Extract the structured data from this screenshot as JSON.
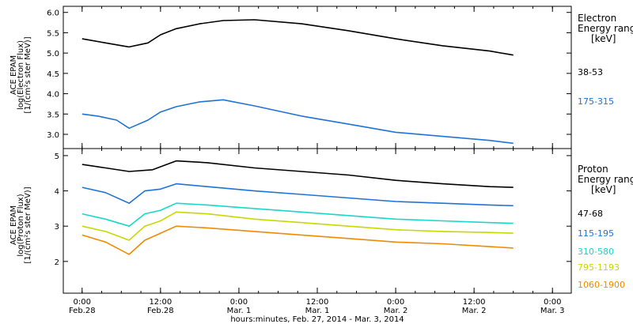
{
  "chart_data": [
    {
      "type": "line",
      "panel": "top",
      "ylabel_lines": [
        "ACE EPAM",
        "log(Electron Flux)",
        "[1/(cm²s ster MeV)]"
      ],
      "ylim": [
        2.65,
        6.15
      ],
      "yticks": [
        3.0,
        3.5,
        4.0,
        4.5,
        5.0,
        5.5,
        6.0
      ],
      "yticklabels": [
        "3.0",
        "3.5",
        "4.0",
        "4.5",
        "5.0",
        "5.5",
        "6.0"
      ],
      "legend_title": [
        "Electron",
        "Energy range",
        "[keV]"
      ],
      "series": [
        {
          "name": "38-53",
          "color": "#000000",
          "x": [
            0,
            0.15,
            0.3,
            0.42,
            0.5,
            0.6,
            0.75,
            0.9,
            1.1,
            1.4,
            1.7,
            2.0,
            2.3,
            2.6,
            2.75
          ],
          "y": [
            5.35,
            5.25,
            5.15,
            5.25,
            5.45,
            5.6,
            5.72,
            5.8,
            5.82,
            5.72,
            5.55,
            5.35,
            5.18,
            5.05,
            4.95
          ]
        },
        {
          "name": "175-315",
          "color": "#1f73d8",
          "x": [
            0,
            0.1,
            0.22,
            0.3,
            0.42,
            0.5,
            0.6,
            0.75,
            0.9,
            1.1,
            1.4,
            1.7,
            2.0,
            2.3,
            2.6,
            2.75
          ],
          "y": [
            3.5,
            3.45,
            3.35,
            3.15,
            3.35,
            3.55,
            3.68,
            3.8,
            3.85,
            3.7,
            3.45,
            3.25,
            3.05,
            2.95,
            2.85,
            2.78
          ]
        }
      ]
    },
    {
      "type": "line",
      "panel": "bottom",
      "ylabel_lines": [
        "ACE EPAM",
        "log(Proton Flux)",
        "[1/(cm²s ster MeV)]"
      ],
      "ylim": [
        1.1,
        5.2
      ],
      "yticks": [
        2,
        3,
        4,
        5
      ],
      "yticklabels": [
        "2",
        "3",
        "4",
        "5"
      ],
      "legend_title": [
        "Proton",
        "Energy range",
        "[keV]"
      ],
      "series": [
        {
          "name": "47-68",
          "color": "#000000",
          "x": [
            0,
            0.15,
            0.3,
            0.45,
            0.6,
            0.8,
            1.1,
            1.4,
            1.7,
            2.0,
            2.3,
            2.6,
            2.75
          ],
          "y": [
            4.75,
            4.65,
            4.55,
            4.6,
            4.85,
            4.8,
            4.65,
            4.55,
            4.45,
            4.3,
            4.2,
            4.12,
            4.1
          ]
        },
        {
          "name": "115-195",
          "color": "#1f73d8",
          "x": [
            0,
            0.15,
            0.3,
            0.4,
            0.5,
            0.6,
            0.8,
            1.1,
            1.4,
            1.7,
            2.0,
            2.3,
            2.6,
            2.75
          ],
          "y": [
            4.1,
            3.95,
            3.65,
            4.0,
            4.05,
            4.2,
            4.12,
            4.0,
            3.9,
            3.8,
            3.7,
            3.65,
            3.6,
            3.58
          ]
        },
        {
          "name": "310-580",
          "color": "#17d8c8",
          "x": [
            0,
            0.15,
            0.3,
            0.4,
            0.5,
            0.6,
            0.8,
            1.1,
            1.4,
            1.7,
            2.0,
            2.3,
            2.6,
            2.75
          ],
          "y": [
            3.35,
            3.2,
            3.0,
            3.35,
            3.45,
            3.65,
            3.6,
            3.5,
            3.4,
            3.3,
            3.2,
            3.15,
            3.1,
            3.08
          ]
        },
        {
          "name": "795-1193",
          "color": "#c8d800",
          "x": [
            0,
            0.15,
            0.3,
            0.4,
            0.5,
            0.6,
            0.8,
            1.1,
            1.4,
            1.7,
            2.0,
            2.3,
            2.6,
            2.75
          ],
          "y": [
            3.0,
            2.85,
            2.6,
            3.0,
            3.15,
            3.4,
            3.35,
            3.2,
            3.1,
            3.0,
            2.9,
            2.85,
            2.82,
            2.8
          ]
        },
        {
          "name": "1060-1900",
          "color": "#f08a00",
          "x": [
            0,
            0.15,
            0.3,
            0.4,
            0.5,
            0.6,
            0.8,
            1.1,
            1.4,
            1.7,
            2.0,
            2.3,
            2.6,
            2.75
          ],
          "y": [
            2.75,
            2.55,
            2.2,
            2.6,
            2.8,
            3.0,
            2.95,
            2.85,
            2.75,
            2.65,
            2.55,
            2.5,
            2.42,
            2.38
          ]
        }
      ]
    }
  ],
  "x_axis": {
    "xlim": [
      -0.12,
      3.12
    ],
    "ticks": [
      0,
      0.5,
      1,
      1.5,
      2,
      2.5,
      3
    ],
    "tick_time_labels": [
      "0:00",
      "12:00",
      "0:00",
      "12:00",
      "0:00",
      "12:00",
      "0:00"
    ],
    "tick_date_labels": [
      "Feb.28",
      "Feb.28",
      "Mar. 1",
      "Mar. 1",
      "Mar. 2",
      "Mar. 2",
      "Mar. 3"
    ],
    "xlabel": "hours:minutes, Feb. 27, 2014 - Mar.  3, 2014"
  }
}
